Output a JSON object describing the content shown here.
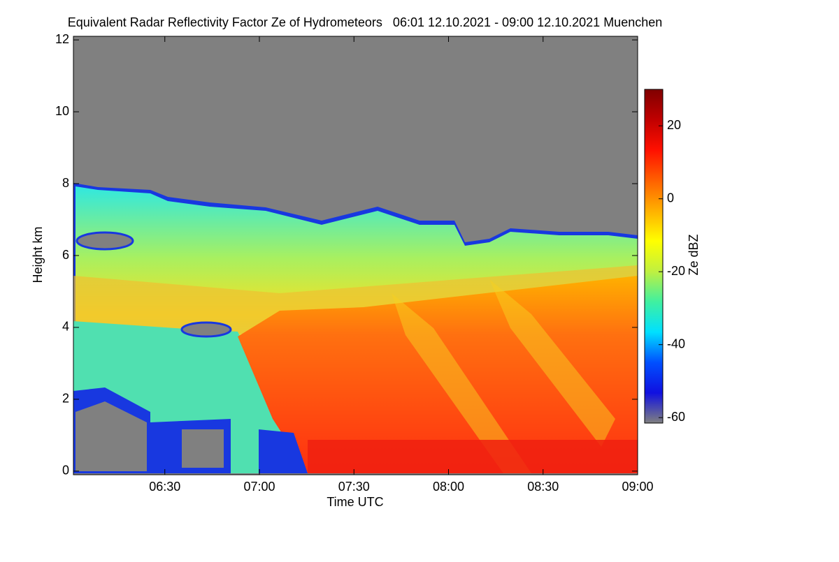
{
  "chart_data": {
    "type": "heatmap",
    "title": "Equivalent Radar Reflectivity Factor Ze of Hydrometeors   06:01 12.10.2021 - 09:00 12.10.2021 Muenchen",
    "xlabel": "Time UTC",
    "ylabel": "Height km",
    "xlim": [
      "06:01",
      "09:00"
    ],
    "xticks": [
      "06:30",
      "07:00",
      "07:30",
      "08:00",
      "08:30",
      "09:00"
    ],
    "ylim": [
      -0.1,
      12.1
    ],
    "yticks": [
      0,
      2,
      4,
      6,
      8,
      10,
      12
    ],
    "colorbar": {
      "label": "Ze dBZ",
      "lim": [
        -61.5,
        30
      ],
      "ticks": [
        -60,
        -40,
        -20,
        0,
        20
      ],
      "colors": [
        "#808080",
        "#1010e0",
        "#0050ff",
        "#00e0ff",
        "#40f0a0",
        "#c0f040",
        "#ffff00",
        "#ffb000",
        "#ff6000",
        "#ff1000",
        "#c00000",
        "#800000"
      ]
    }
  }
}
